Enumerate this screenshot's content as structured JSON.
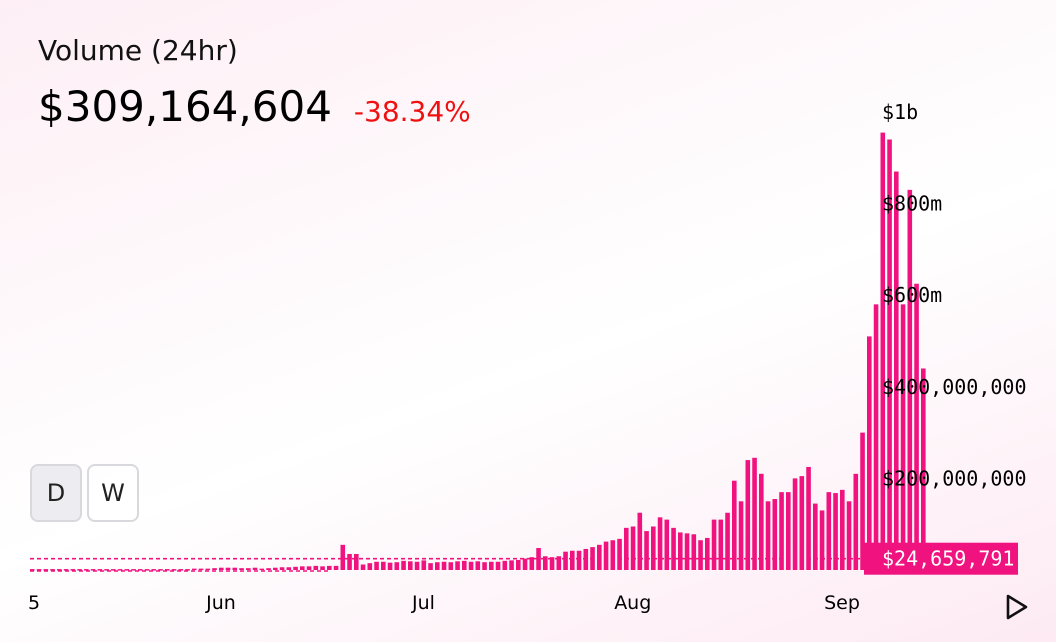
{
  "header": {
    "title": "Volume (24hr)",
    "value": "$309,164,604",
    "change": "-38.34%"
  },
  "colors": {
    "accent": "#f0127f",
    "negative": "#ee1111",
    "text": "#000000"
  },
  "buttons": [
    {
      "label": "D",
      "active": true
    },
    {
      "label": "W",
      "active": false
    }
  ],
  "playback_icon": "play-icon",
  "chart_data": {
    "type": "bar",
    "title": "",
    "xlabel": "",
    "ylabel": "",
    "ylim": [
      0,
      1000000000
    ],
    "y_ticks": [
      {
        "value": 1000000000,
        "label": "$1b"
      },
      {
        "value": 800000000,
        "label": "$800m"
      },
      {
        "value": 600000000,
        "label": "$600m"
      },
      {
        "value": 400000000,
        "label": "$400,000,000"
      },
      {
        "value": 200000000,
        "label": "$200,000,000"
      }
    ],
    "x_ticks": [
      {
        "index": 0,
        "label": "5"
      },
      {
        "index": 28,
        "label": "Jun"
      },
      {
        "index": 58,
        "label": "Jul"
      },
      {
        "index": 89,
        "label": "Aug"
      },
      {
        "index": 120,
        "label": "Sep"
      }
    ],
    "current_marker": {
      "value": 24659791,
      "label": "$24,659,791"
    },
    "values": [
      2000000,
      2000000,
      2000000,
      2000000,
      2000000,
      2000000,
      2000000,
      2000000,
      2000000,
      2000000,
      2000000,
      2000000,
      2000000,
      2000000,
      2000000,
      2000000,
      2000000,
      2000000,
      2000000,
      2000000,
      2000000,
      2000000,
      2000000,
      2000000,
      3000000,
      3000000,
      3000000,
      4000000,
      5000000,
      5000000,
      5000000,
      4000000,
      4000000,
      5000000,
      3000000,
      4000000,
      5000000,
      6000000,
      6000000,
      7000000,
      8000000,
      8000000,
      9000000,
      8000000,
      9000000,
      9000000,
      55000000,
      35000000,
      35000000,
      12000000,
      15000000,
      18000000,
      18000000,
      16000000,
      17000000,
      20000000,
      19000000,
      18000000,
      21000000,
      15000000,
      17000000,
      18000000,
      17000000,
      19000000,
      20000000,
      18000000,
      19000000,
      17000000,
      18000000,
      18000000,
      20000000,
      21000000,
      22000000,
      25000000,
      28000000,
      48000000,
      30000000,
      28000000,
      30000000,
      40000000,
      42000000,
      42000000,
      46000000,
      50000000,
      55000000,
      62000000,
      65000000,
      68000000,
      92000000,
      95000000,
      125000000,
      85000000,
      95000000,
      115000000,
      110000000,
      92000000,
      82000000,
      80000000,
      78000000,
      65000000,
      70000000,
      110000000,
      110000000,
      125000000,
      195000000,
      150000000,
      240000000,
      245000000,
      210000000,
      150000000,
      155000000,
      170000000,
      170000000,
      200000000,
      205000000,
      225000000,
      145000000,
      130000000,
      170000000,
      168000000,
      175000000,
      150000000,
      210000000,
      300000000,
      510000000,
      580000000,
      955000000,
      940000000,
      870000000,
      580000000,
      830000000,
      625000000,
      440000000,
      25000000
    ]
  }
}
